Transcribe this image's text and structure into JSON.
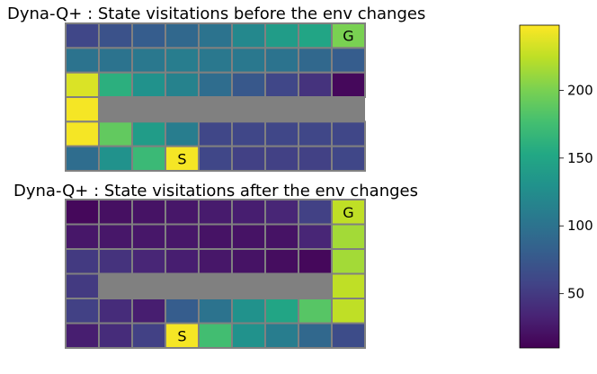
{
  "chart_data": [
    {
      "type": "heatmap",
      "title": "Dyna-Q+ : State visitations before the env changes",
      "rows": 6,
      "cols": 9,
      "wall_color": "#808080",
      "values": [
        [
          60,
          70,
          80,
          90,
          100,
          120,
          140,
          150,
          200
        ],
        [
          100,
          100,
          105,
          110,
          105,
          105,
          100,
          90,
          80
        ],
        [
          235,
          160,
          130,
          115,
          95,
          75,
          60,
          45,
          15
        ],
        [
          245,
          null,
          null,
          null,
          null,
          null,
          null,
          null,
          null
        ],
        [
          245,
          190,
          140,
          110,
          60,
          60,
          60,
          60,
          60
        ],
        [
          95,
          130,
          170,
          245,
          60,
          55,
          55,
          55,
          60
        ]
      ],
      "markers": [
        {
          "row": 0,
          "col": 8,
          "text": "G"
        },
        {
          "row": 5,
          "col": 3,
          "text": "S"
        }
      ]
    },
    {
      "type": "heatmap",
      "title": "Dyna-Q+ : State visitations after the env changes",
      "rows": 6,
      "cols": 9,
      "wall_color": "#808080",
      "values": [
        [
          15,
          20,
          22,
          25,
          28,
          30,
          35,
          55,
          225
        ],
        [
          25,
          25,
          25,
          25,
          22,
          22,
          22,
          35,
          215
        ],
        [
          50,
          45,
          35,
          30,
          25,
          22,
          18,
          15,
          215
        ],
        [
          50,
          null,
          null,
          null,
          null,
          null,
          null,
          null,
          225
        ],
        [
          55,
          40,
          30,
          80,
          100,
          130,
          150,
          185,
          225
        ],
        [
          30,
          40,
          55,
          245,
          175,
          130,
          110,
          90,
          65
        ]
      ],
      "markers": [
        {
          "row": 0,
          "col": 8,
          "text": "G"
        },
        {
          "row": 5,
          "col": 3,
          "text": "S"
        }
      ]
    }
  ],
  "colorbar": {
    "colormap": "viridis",
    "vmin": 10,
    "vmax": 248,
    "ticks": [
      50,
      100,
      150,
      200
    ]
  }
}
